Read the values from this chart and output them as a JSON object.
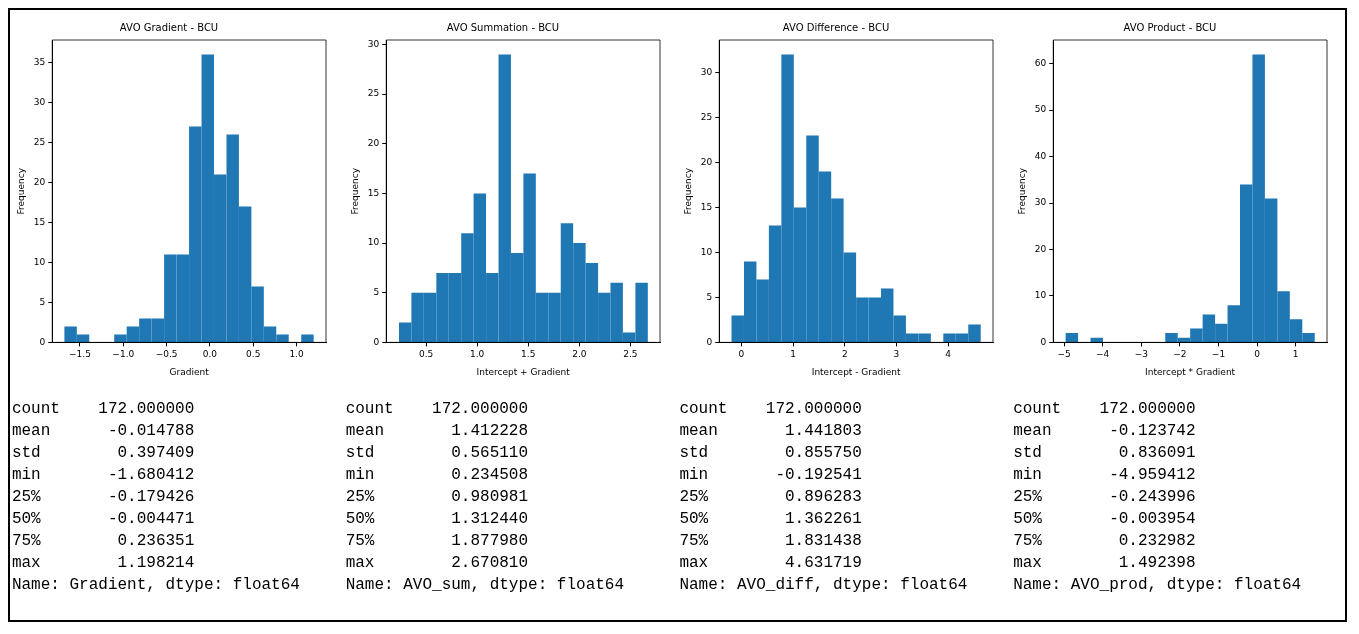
{
  "chart_data": [
    {
      "type": "histogram",
      "title": "AVO Gradient - BCU",
      "xlabel": "Gradient",
      "ylabel": "Frequency",
      "color": "#1f77b4",
      "bins": [
        -1.68,
        -1.536,
        -1.393,
        -1.249,
        -1.105,
        -0.961,
        -0.817,
        -0.673,
        -0.529,
        -0.385,
        -0.241,
        -0.097,
        0.047,
        0.191,
        0.335,
        0.479,
        0.622,
        0.766,
        0.91,
        1.054,
        1.198
      ],
      "values": [
        2,
        1,
        0,
        0,
        1,
        2,
        3,
        3,
        11,
        11,
        27,
        36,
        21,
        26,
        17,
        7,
        2,
        1,
        0,
        1
      ],
      "xlim": [
        -1.82,
        1.34
      ],
      "xticks": [
        {
          "value": -1.5,
          "label": "−1.5"
        },
        {
          "value": -1.0,
          "label": "−1.0"
        },
        {
          "value": -0.5,
          "label": "−0.5"
        },
        {
          "value": 0,
          "label": "0.0"
        },
        {
          "value": 0.5,
          "label": "0.5"
        },
        {
          "value": 1.0,
          "label": "1.0"
        }
      ],
      "ylim": [
        0,
        37.8
      ],
      "yticks": [
        0,
        5,
        10,
        15,
        20,
        25,
        30,
        35
      ],
      "annotations": [
        "count    172.000000",
        "mean      -0.014788",
        "std        0.397409",
        "min       -1.680412",
        "25%       -0.179426",
        "50%       -0.004471",
        "75%        0.236351",
        "max        1.198214",
        "Name: Gradient, dtype: float64"
      ]
    },
    {
      "type": "histogram",
      "title": "AVO Summation - BCU",
      "xlabel": "Intercept + Gradient",
      "ylabel": "Frequency",
      "color": "#1f77b4",
      "bins": [
        0.235,
        0.356,
        0.478,
        0.6,
        0.722,
        0.844,
        0.965,
        1.087,
        1.209,
        1.331,
        1.453,
        1.574,
        1.696,
        1.818,
        1.94,
        2.062,
        2.184,
        2.305,
        2.427,
        2.549,
        2.671
      ],
      "values": [
        2,
        5,
        5,
        7,
        7,
        11,
        15,
        7,
        29,
        9,
        17,
        5,
        5,
        12,
        10,
        8,
        5,
        6,
        1,
        6
      ],
      "xlim": [
        0.11,
        2.79
      ],
      "xticks": [
        0.5,
        {
          "value": 1.0,
          "label": "1.0"
        },
        1.5,
        {
          "value": 2.0,
          "label": "2.0"
        },
        2.5
      ],
      "ylim": [
        0,
        30.45
      ],
      "yticks": [
        0,
        5,
        10,
        15,
        20,
        25,
        30
      ],
      "annotations": [
        "count    172.000000",
        "mean       1.412228",
        "std        0.565110",
        "min        0.234508",
        "25%        0.980981",
        "50%        1.312440",
        "75%        1.877980",
        "max        2.670810",
        "Name: AVO_sum, dtype: float64"
      ]
    },
    {
      "type": "histogram",
      "title": "AVO Difference - BCU",
      "xlabel": "Intercept - Gradient",
      "ylabel": "Frequency",
      "color": "#1f77b4",
      "bins": [
        -0.193,
        0.049,
        0.29,
        0.531,
        0.772,
        1.014,
        1.255,
        1.496,
        1.737,
        1.978,
        2.22,
        2.461,
        2.702,
        2.943,
        3.184,
        3.426,
        3.667,
        3.908,
        4.149,
        4.391,
        4.632
      ],
      "values": [
        3,
        9,
        7,
        13,
        32,
        15,
        23,
        19,
        16,
        10,
        5,
        5,
        6,
        3,
        1,
        1,
        0,
        1,
        1,
        2
      ],
      "xlim": [
        -0.43,
        4.87
      ],
      "xticks": [
        0,
        1,
        2,
        3,
        4
      ],
      "ylim": [
        0,
        33.6
      ],
      "yticks": [
        0,
        5,
        10,
        15,
        20,
        25,
        30
      ],
      "annotations": [
        "count    172.000000",
        "mean       1.441803",
        "std        0.855750",
        "min       -0.192541",
        "25%        0.896283",
        "50%        1.362261",
        "75%        1.831438",
        "max        4.631719",
        "Name: AVO_diff, dtype: float64"
      ]
    },
    {
      "type": "histogram",
      "title": "AVO Product - BCU",
      "xlabel": "Intercept * Gradient",
      "ylabel": "Frequency",
      "color": "#1f77b4",
      "bins": [
        -4.959,
        -4.637,
        -4.314,
        -3.992,
        -3.669,
        -3.346,
        -3.024,
        -2.701,
        -2.379,
        -2.056,
        -1.734,
        -1.411,
        -1.088,
        -0.766,
        -0.443,
        -0.121,
        0.202,
        0.525,
        0.847,
        1.17,
        1.492
      ],
      "values": [
        2,
        0,
        1,
        0,
        0,
        0,
        0,
        0,
        2,
        1,
        3,
        6,
        4,
        8,
        34,
        62,
        31,
        11,
        5,
        2
      ],
      "xlim": [
        -5.28,
        1.81
      ],
      "xticks": [
        {
          "value": -5,
          "label": "−5"
        },
        {
          "value": -4,
          "label": "−4"
        },
        {
          "value": -3,
          "label": "−3"
        },
        {
          "value": -2,
          "label": "−2"
        },
        {
          "value": -1,
          "label": "−1"
        },
        0,
        1
      ],
      "ylim": [
        0,
        65.1
      ],
      "yticks": [
        0,
        10,
        20,
        30,
        40,
        50,
        60
      ],
      "annotations": [
        "count    172.000000",
        "mean      -0.123742",
        "std        0.836091",
        "min       -4.959412",
        "25%       -0.243996",
        "50%       -0.003954",
        "75%        0.232982",
        "max        1.492398",
        "Name: AVO_prod, dtype: float64"
      ]
    }
  ]
}
